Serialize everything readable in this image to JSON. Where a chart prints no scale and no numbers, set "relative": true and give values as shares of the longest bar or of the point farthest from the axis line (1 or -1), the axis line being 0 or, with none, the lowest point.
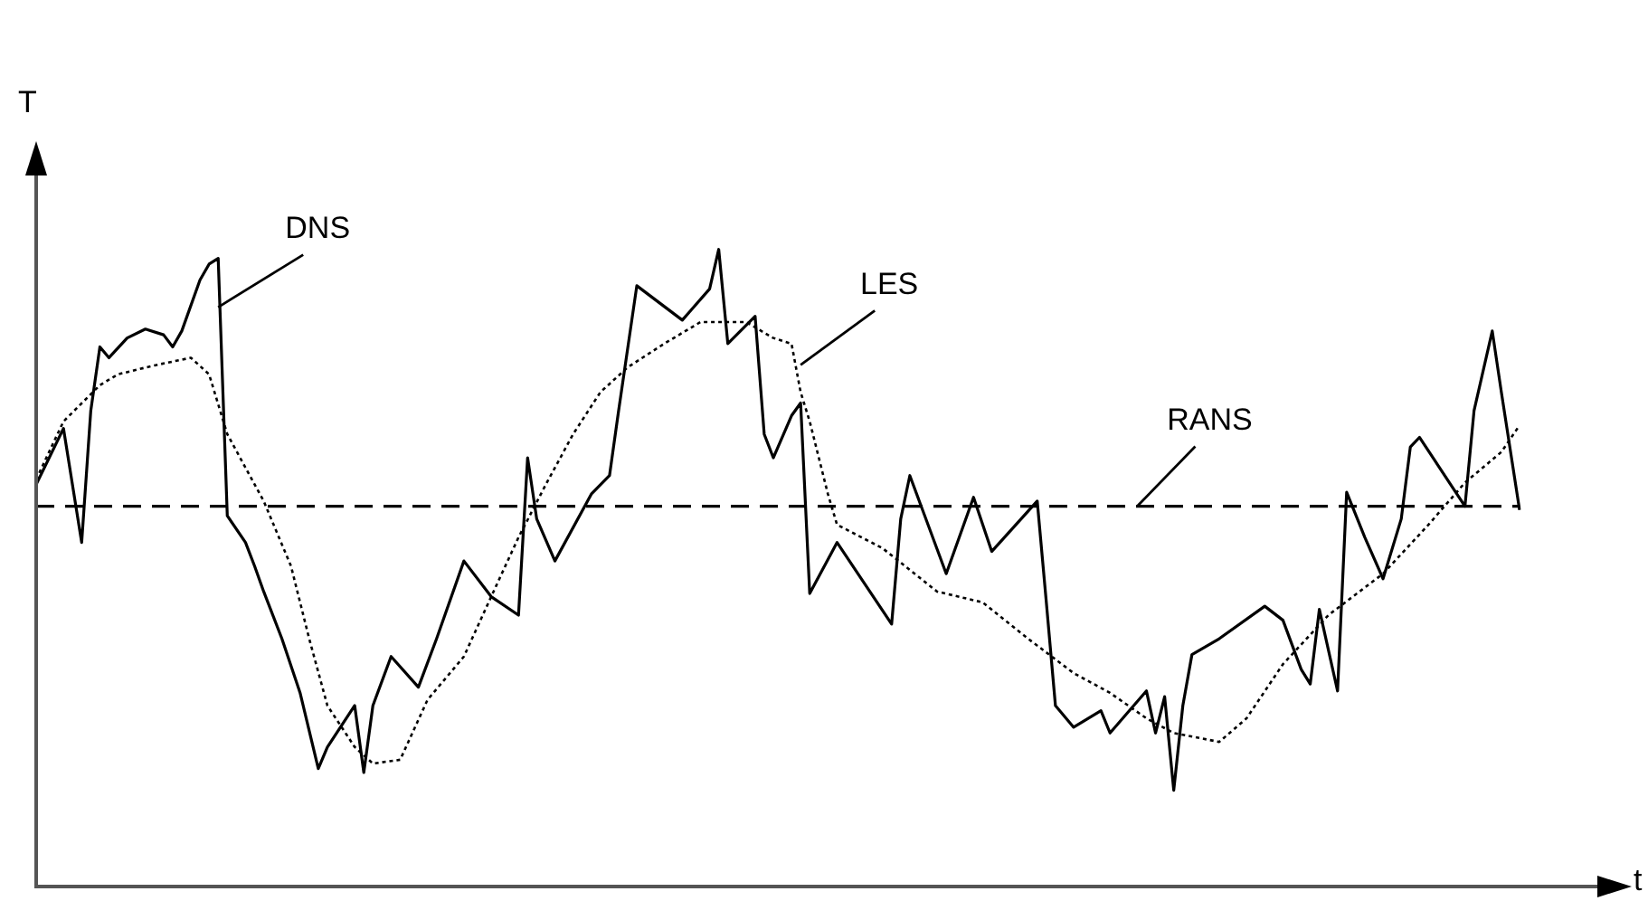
{
  "chart_data": {
    "type": "line",
    "relative": true,
    "xlabel": "t",
    "ylabel": "T",
    "marker": "none",
    "categories": [
      null,
      null,
      null,
      null,
      null,
      null,
      null,
      null,
      null,
      null,
      null,
      null,
      null,
      null,
      null,
      null,
      null,
      null,
      null,
      null,
      null,
      null,
      null,
      null,
      null,
      null,
      null,
      null,
      null,
      null,
      null,
      null,
      null,
      null,
      null,
      null,
      null,
      null,
      null,
      null,
      null,
      null,
      null,
      null,
      null,
      null,
      null,
      null,
      null,
      null,
      null,
      null,
      null,
      null,
      null,
      null,
      null,
      null,
      null,
      null,
      null,
      null,
      null,
      null,
      null,
      null,
      null,
      null,
      null,
      null,
      null,
      null,
      null,
      null,
      null,
      null,
      null,
      null,
      null,
      null,
      null,
      null,
      null,
      null,
      null,
      null,
      null,
      null,
      null,
      null,
      null,
      null,
      null,
      null,
      null,
      null,
      null,
      null,
      null,
      null,
      null,
      null,
      null,
      null,
      null,
      null,
      null,
      null,
      null,
      null,
      null,
      null,
      null,
      null,
      null,
      null,
      null,
      null,
      null,
      null,
      null,
      null,
      null,
      null,
      null,
      null,
      null,
      null,
      null,
      null,
      null,
      null,
      null,
      null,
      null,
      null,
      null,
      null,
      null,
      null,
      null,
      null,
      null,
      null,
      null,
      null,
      null,
      null,
      null,
      null,
      null,
      null,
      null,
      null,
      null,
      null,
      null,
      null,
      null,
      null,
      null,
      null,
      null,
      null
    ],
    "series": [
      {
        "name": "DNS",
        "color": "#000000",
        "line_style": "solid",
        "values": [
          0.631,
          null,
          null,
          0.719,
          null,
          0.54,
          0.747,
          0.847,
          0.83,
          null,
          0.861,
          null,
          0.875,
          null,
          0.866,
          0.847,
          0.872,
          null,
          0.952,
          0.977,
          0.986,
          0.582,
          null,
          0.54,
          0.503,
          0.463,
          null,
          0.389,
          null,
          0.304,
          null,
          0.185,
          0.219,
          null,
          null,
          0.284,
          0.179,
          0.284,
          null,
          0.361,
          null,
          null,
          0.313,
          null,
          0.389,
          null,
          null,
          0.511,
          null,
          null,
          0.455,
          null,
          null,
          0.426,
          0.673,
          0.577,
          null,
          0.511,
          null,
          null,
          null,
          0.616,
          null,
          0.645,
          0.747,
          null,
          0.943,
          null,
          null,
          null,
          null,
          0.889,
          null,
          null,
          0.938,
          1,
          0.852,
          null,
          null,
          0.895,
          0.71,
          0.673,
          null,
          0.739,
          0.759,
          0.46,
          null,
          null,
          0.54,
          null,
          null,
          null,
          null,
          null,
          0.412,
          0.577,
          0.645,
          null,
          null,
          null,
          0.491,
          null,
          null,
          0.611,
          null,
          0.526,
          null,
          null,
          null,
          null,
          0.605,
          0.446,
          0.284,
          null,
          0.25,
          null,
          null,
          0.276,
          0.241,
          null,
          null,
          null,
          0.307,
          0.241,
          0.298,
          0.151,
          0.284,
          0.364,
          null,
          null,
          0.389,
          null,
          null,
          null,
          null,
          0.44,
          null,
          0.418,
          null,
          0.341,
          0.318,
          0.435,
          null,
          0.307,
          0.619,
          null,
          0.548,
          null,
          0.483,
          null,
          0.577,
          0.69,
          0.705,
          null,
          0.662,
          null,
          null,
          0.597,
          0.747,
          null,
          0.872,
          0.776,
          null,
          0.591
        ]
      },
      {
        "name": "LES",
        "color": "#000000",
        "line_style": "dotted",
        "values": [
          0.639,
          null,
          null,
          0.73,
          null,
          null,
          null,
          0.787,
          null,
          0.804,
          null,
          null,
          null,
          0.818,
          null,
          null,
          null,
          0.83,
          null,
          0.804,
          null,
          0.71,
          null,
          null,
          null,
          0.605,
          null,
          null,
          0.503,
          null,
          0.389,
          null,
          0.284,
          null,
          null,
          0.219,
          null,
          0.193,
          null,
          null,
          0.199,
          null,
          null,
          0.293,
          null,
          null,
          null,
          0.361,
          null,
          null,
          0.455,
          null,
          null,
          0.548,
          null,
          null,
          0.631,
          null,
          null,
          0.71,
          null,
          null,
          0.776,
          null,
          null,
          0.815,
          null,
          null,
          null,
          0.852,
          null,
          null,
          null,
          0.886,
          null,
          null,
          null,
          null,
          0.886,
          null,
          null,
          0.861,
          null,
          0.852,
          0.776,
          0.73,
          null,
          0.616,
          0.568,
          null,
          null,
          null,
          null,
          0.531,
          null,
          null,
          null,
          null,
          null,
          0.463,
          null,
          null,
          null,
          null,
          0.446,
          null,
          null,
          null,
          null,
          0.389,
          null,
          null,
          null,
          null,
          0.335,
          null,
          null,
          null,
          0.304,
          null,
          null,
          null,
          0.264,
          null,
          null,
          0.241,
          null,
          null,
          null,
          null,
          0.227,
          null,
          null,
          0.264,
          null,
          null,
          null,
          0.349,
          null,
          null,
          null,
          null,
          0.426,
          null,
          null,
          null,
          null,
          null,
          0.491,
          null,
          null,
          null,
          null,
          0.568,
          null,
          null,
          null,
          0.634,
          null,
          null,
          null,
          0.682,
          null,
          0.724
        ]
      },
      {
        "name": "RANS",
        "color": "#000000",
        "line_style": "dashed",
        "values": [
          0.597,
          null,
          null,
          null,
          null,
          null,
          null,
          null,
          null,
          null,
          null,
          null,
          null,
          null,
          null,
          null,
          null,
          null,
          null,
          null,
          null,
          null,
          null,
          null,
          null,
          null,
          null,
          null,
          null,
          null,
          null,
          null,
          null,
          null,
          null,
          null,
          null,
          null,
          null,
          null,
          null,
          null,
          null,
          null,
          null,
          null,
          null,
          null,
          null,
          null,
          null,
          null,
          null,
          null,
          null,
          null,
          null,
          null,
          null,
          null,
          null,
          null,
          null,
          null,
          null,
          null,
          null,
          null,
          null,
          null,
          null,
          null,
          null,
          null,
          null,
          null,
          null,
          null,
          null,
          null,
          null,
          null,
          null,
          null,
          null,
          null,
          null,
          null,
          null,
          null,
          null,
          null,
          null,
          null,
          null,
          null,
          null,
          null,
          null,
          null,
          null,
          null,
          null,
          null,
          null,
          null,
          null,
          null,
          null,
          null,
          null,
          null,
          null,
          null,
          null,
          null,
          null,
          null,
          null,
          null,
          null,
          null,
          null,
          null,
          null,
          null,
          null,
          null,
          null,
          null,
          null,
          null,
          null,
          null,
          null,
          null,
          null,
          null,
          null,
          null,
          null,
          null,
          null,
          null,
          null,
          null,
          null,
          null,
          null,
          null,
          null,
          null,
          null,
          null,
          null,
          null,
          null,
          null,
          null,
          null,
          null,
          null,
          null,
          0.597
        ]
      }
    ]
  }
}
